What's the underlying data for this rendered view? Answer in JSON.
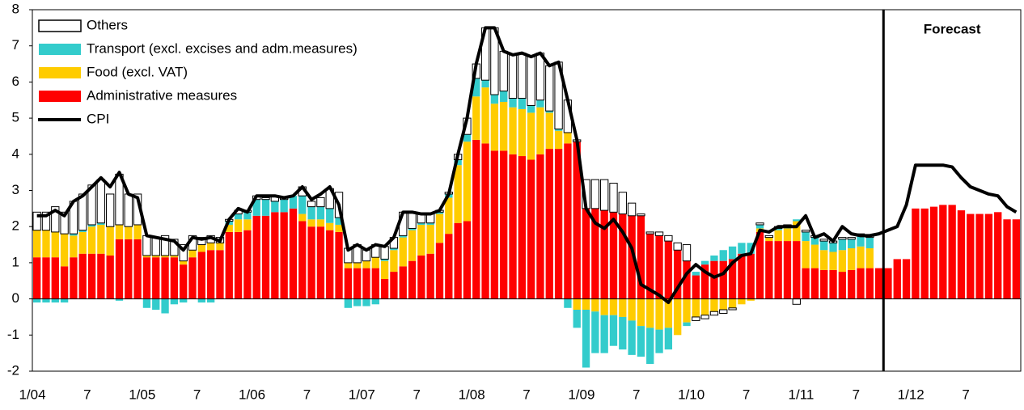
{
  "chart_data": {
    "type": "bar",
    "stacked": true,
    "categories": [
      "1/04",
      null,
      null,
      null,
      null,
      null,
      "7",
      null,
      null,
      null,
      null,
      null,
      "1/05",
      null,
      null,
      null,
      null,
      null,
      "7",
      null,
      null,
      null,
      null,
      null,
      "1/06",
      null,
      null,
      null,
      null,
      null,
      "7",
      null,
      null,
      null,
      null,
      null,
      "1/07",
      null,
      null,
      null,
      null,
      null,
      "7",
      null,
      null,
      null,
      null,
      null,
      "1/08",
      null,
      null,
      null,
      null,
      null,
      "7",
      null,
      null,
      null,
      null,
      null,
      "1/09",
      null,
      null,
      null,
      null,
      null,
      "7",
      null,
      null,
      null,
      null,
      null,
      "1/10",
      null,
      null,
      null,
      null,
      null,
      "7",
      null,
      null,
      null,
      null,
      null,
      "1/11",
      null,
      null,
      null,
      null,
      null,
      "7",
      null,
      null,
      null,
      null,
      null,
      "1/12",
      null,
      null,
      null,
      null,
      null,
      "7",
      null,
      null,
      null,
      null,
      null
    ],
    "series": [
      {
        "name": "Administrative measures",
        "color": "#ff0000",
        "values": [
          1.15,
          1.15,
          1.15,
          0.9,
          1.15,
          1.25,
          1.25,
          1.25,
          1.2,
          1.65,
          1.65,
          1.65,
          1.15,
          1.15,
          1.15,
          1.15,
          0.95,
          1.15,
          1.3,
          1.35,
          1.35,
          1.85,
          1.85,
          1.9,
          2.3,
          2.3,
          2.4,
          2.4,
          2.5,
          2.15,
          2.0,
          2.0,
          1.9,
          1.85,
          0.85,
          0.85,
          0.85,
          0.85,
          0.55,
          0.75,
          0.9,
          1.05,
          1.2,
          1.25,
          1.55,
          1.8,
          2.1,
          2.15,
          4.4,
          4.3,
          4.1,
          4.1,
          4.0,
          3.95,
          3.85,
          4.0,
          4.15,
          4.15,
          4.3,
          4.35,
          2.5,
          2.5,
          2.45,
          2.4,
          2.35,
          2.3,
          2.3,
          1.8,
          1.75,
          1.6,
          1.35,
          1.05,
          0.65,
          0.95,
          1.05,
          1.05,
          1.1,
          1.25,
          1.25,
          1.85,
          1.6,
          1.6,
          1.6,
          1.6,
          0.85,
          0.85,
          0.8,
          0.8,
          0.75,
          0.8,
          0.85,
          0.85,
          0.85,
          0.85,
          1.1,
          1.1,
          2.5,
          2.5,
          2.55,
          2.6,
          2.6,
          2.45,
          2.35,
          2.35,
          2.35,
          2.4,
          2.2,
          2.2
        ]
      },
      {
        "name": "Food (excl. VAT)",
        "color": "#ffcc00",
        "values": [
          0.75,
          0.75,
          0.7,
          0.9,
          0.6,
          0.6,
          0.75,
          0.8,
          0.8,
          0.4,
          0.35,
          0.4,
          0.05,
          0.05,
          0.05,
          0.05,
          0.1,
          0.2,
          0.2,
          0.2,
          0.2,
          0.2,
          0.35,
          0.3,
          0,
          0,
          0,
          0,
          0,
          0.2,
          0.2,
          0.2,
          0.2,
          0.2,
          0.15,
          0.15,
          0.2,
          0.3,
          0.5,
          0.6,
          0.8,
          0.85,
          0.85,
          0.8,
          0.8,
          1.0,
          1.6,
          2.2,
          1.2,
          1.55,
          1.3,
          1.35,
          1.3,
          1.3,
          1.3,
          1.3,
          1.0,
          0.5,
          0.3,
          -0.3,
          -0.3,
          -0.35,
          -0.45,
          -0.45,
          -0.5,
          -0.6,
          -0.75,
          -0.8,
          -0.85,
          -0.8,
          -1.0,
          -0.65,
          -0.5,
          -0.45,
          -0.35,
          -0.3,
          -0.25,
          -0.15,
          -0.05,
          0.1,
          0.1,
          0.3,
          0.35,
          0.55,
          0.75,
          0.65,
          0.55,
          0.5,
          0.6,
          0.6,
          0.6,
          0.55,
          null,
          null,
          null,
          null,
          null,
          null,
          null,
          null,
          null,
          null,
          null,
          null,
          null,
          null,
          null,
          null
        ]
      },
      {
        "name": "Transport (excl. excises and adm.measures)",
        "color": "#33cccc",
        "values": [
          -0.1,
          -0.1,
          -0.1,
          -0.1,
          0.05,
          0.05,
          0.05,
          0.05,
          0,
          -0.05,
          0,
          0,
          -0.25,
          -0.3,
          -0.4,
          -0.15,
          -0.1,
          0,
          -0.1,
          -0.1,
          0,
          0.1,
          0.15,
          0.2,
          0.45,
          0.45,
          0.3,
          0.35,
          0.35,
          0.5,
          0.35,
          0.35,
          0.4,
          0.2,
          -0.25,
          -0.2,
          -0.2,
          -0.15,
          0.05,
          0.05,
          0.05,
          0.05,
          0.05,
          0.05,
          0.05,
          0.1,
          0.15,
          0.2,
          0.5,
          0.2,
          0.25,
          0.3,
          0.25,
          0.3,
          0.2,
          0.2,
          0.05,
          0.05,
          -0.25,
          -0.5,
          -1.6,
          -1.15,
          -1.05,
          -0.85,
          -0.9,
          -0.95,
          -0.85,
          -1.0,
          -0.65,
          -0.6,
          0,
          -0.1,
          0.1,
          0.1,
          0.15,
          0.3,
          0.35,
          0.3,
          0.3,
          0.1,
          0,
          0.05,
          0.05,
          0.05,
          0.25,
          0.2,
          0.25,
          0.25,
          0.3,
          0.25,
          0.3,
          0.3,
          null,
          null,
          null,
          null,
          null,
          null,
          null,
          null,
          null,
          null,
          null,
          null,
          null,
          null,
          null,
          null
        ]
      },
      {
        "name": "Others",
        "color": "#ffffff",
        "edgecolor": "#000000",
        "values": [
          0.5,
          0.5,
          0.7,
          0.6,
          0.9,
          1.0,
          1.1,
          1.2,
          0.9,
          1.4,
          0.9,
          0.85,
          0.55,
          0.5,
          0.55,
          0.45,
          0.45,
          0.4,
          0.2,
          0.2,
          0.15,
          0.05,
          0.1,
          0.05,
          0.1,
          0.05,
          0.15,
          0.05,
          0,
          0.25,
          0.15,
          0.25,
          0.55,
          0.7,
          0.4,
          0.5,
          0.3,
          0.35,
          0.35,
          0.3,
          0.65,
          0.45,
          0.25,
          0.25,
          0.05,
          0.05,
          0.15,
          0.45,
          0.4,
          1.45,
          1.85,
          1.1,
          1.2,
          1.25,
          1.35,
          1.3,
          1.25,
          1.85,
          0.9,
          0.05,
          0.8,
          0.8,
          0.85,
          0.8,
          0.6,
          0.35,
          0.05,
          0.05,
          0.1,
          0.15,
          0.2,
          0.45,
          -0.1,
          -0.1,
          -0.1,
          -0.1,
          -0.05,
          0,
          0,
          0.05,
          0.05,
          0.05,
          0.05,
          -0.15,
          0.05,
          0.05,
          0.05,
          0.05,
          0.05,
          0.05,
          0.05,
          0.05,
          null,
          null,
          null,
          null,
          null,
          null,
          null,
          null,
          null,
          null,
          null,
          null,
          null,
          null,
          null,
          null
        ]
      },
      {
        "name": "CPI",
        "type": "line",
        "color": "#000000",
        "values": [
          2.3,
          2.3,
          2.45,
          2.3,
          2.7,
          2.85,
          3.1,
          3.35,
          3.1,
          3.5,
          2.9,
          2.8,
          1.75,
          1.7,
          1.65,
          1.6,
          1.35,
          1.7,
          1.65,
          1.7,
          1.6,
          2.2,
          2.5,
          2.4,
          2.85,
          2.85,
          2.85,
          2.8,
          2.85,
          3.1,
          2.75,
          2.9,
          3.1,
          2.6,
          1.35,
          1.5,
          1.35,
          1.5,
          1.45,
          1.7,
          2.4,
          2.4,
          2.35,
          2.35,
          2.45,
          2.9,
          4.0,
          5.0,
          6.5,
          7.5,
          7.5,
          6.85,
          6.75,
          6.8,
          6.7,
          6.8,
          6.45,
          6.55,
          5.5,
          4.4,
          2.5,
          2.1,
          1.95,
          2.2,
          1.85,
          1.4,
          0.4,
          0.25,
          0.1,
          -0.1,
          0.3,
          0.7,
          0.95,
          0.75,
          0.6,
          0.7,
          1.0,
          1.2,
          1.25,
          1.9,
          1.85,
          2.0,
          2.0,
          2.0,
          2.3,
          1.7,
          1.8,
          1.6,
          2.0,
          1.8,
          1.75,
          1.75,
          1.8,
          1.9,
          2.0,
          2.6,
          3.7,
          3.7,
          3.7,
          3.7,
          3.65,
          3.35,
          3.1,
          3.0,
          2.9,
          2.85,
          2.55,
          2.4
        ]
      }
    ],
    "ylim": [
      -2,
      8
    ],
    "yticks": [
      -2,
      -1,
      0,
      1,
      2,
      3,
      4,
      5,
      6,
      7,
      8
    ],
    "grid": false,
    "legend": "upper left",
    "annotations": [
      {
        "text": "Forecast",
        "x": 93
      }
    ]
  }
}
